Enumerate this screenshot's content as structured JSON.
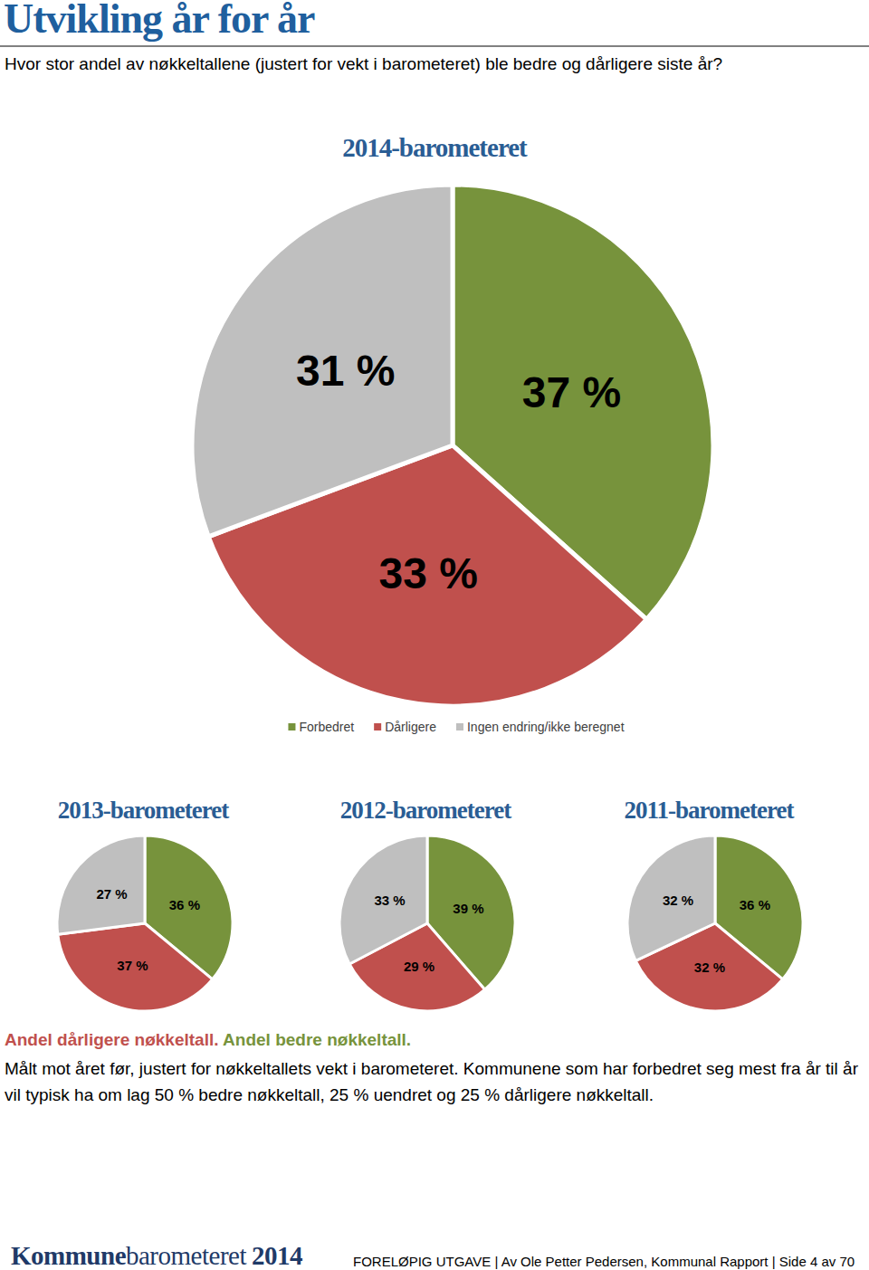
{
  "header": {
    "title": "Utvikling år for år",
    "subtitle": "Hvor stor andel av nøkkeltallene (justert for vekt i barometeret) ble bedre og dårligere siste år?"
  },
  "chart_data": [
    {
      "type": "pie",
      "title": "2014-barometeret",
      "categories": [
        "Forbedret",
        "Dårligere",
        "Ingen endring/ikke beregnet"
      ],
      "values": [
        37,
        33,
        31
      ],
      "value_labels": [
        "37 %",
        "33 %",
        "31 %"
      ],
      "colors": [
        "#77933c",
        "#c0504d",
        "#bfbfbf"
      ],
      "data_labels": true,
      "legend": "bottom"
    },
    {
      "type": "pie",
      "title": "2013-barometeret",
      "values": [
        36,
        37,
        27
      ],
      "value_labels": [
        "36 %",
        "37 %",
        "27 %"
      ],
      "colors": [
        "#77933c",
        "#c0504d",
        "#bfbfbf"
      ],
      "data_labels": true
    },
    {
      "type": "pie",
      "title": "2012-barometeret",
      "values": [
        39,
        29,
        33
      ],
      "value_labels": [
        "39 %",
        "29 %",
        "33 %"
      ],
      "colors": [
        "#77933c",
        "#c0504d",
        "#bfbfbf"
      ],
      "data_labels": true
    },
    {
      "type": "pie",
      "title": "2011-barometeret",
      "values": [
        36,
        32,
        32
      ],
      "value_labels": [
        "36 %",
        "32 %",
        "32 %"
      ],
      "colors": [
        "#77933c",
        "#c0504d",
        "#bfbfbf"
      ],
      "data_labels": true
    }
  ],
  "caption": {
    "worse": "Andel dårligere nøkkeltall.",
    "better": "Andel bedre nøkkeltall.",
    "text": "Målt mot året før, justert for nøkkeltallets vekt i barometeret. Kommunene som har forbedret seg mest fra år til år vil typisk ha om lag 50 % bedre nøkkeltall, 25 % uendret og 25 % dårligere nøkkeltall."
  },
  "footer": {
    "logo": [
      "Kommune",
      "barometeret",
      "2014"
    ],
    "text": "FORELØPIG UTGAVE | Av Ole Petter Pedersen, Kommunal Rapport | Side 4 av 70"
  }
}
